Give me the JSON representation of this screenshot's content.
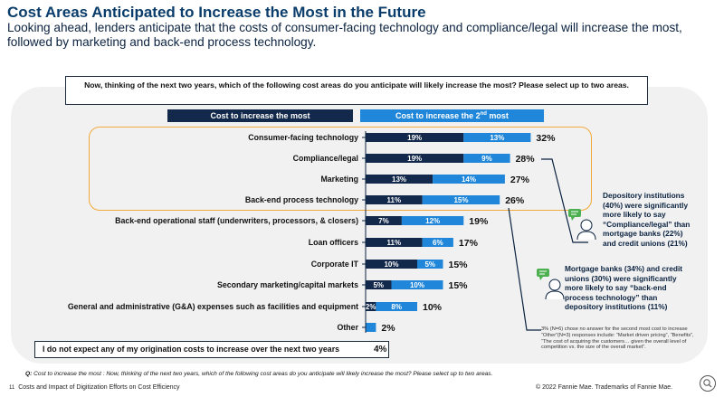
{
  "header": {
    "title": "Cost Areas Anticipated to Increase the Most in the Future",
    "subtitle": "Looking ahead, lenders anticipate that the costs of consumer-facing technology and compliance/legal will increase the most, followed by marketing and back-end process technology."
  },
  "question": "Now, thinking of the next two years, which of the following cost areas do you anticipate will likely increase the most? Please select up to two areas.",
  "legend": {
    "most": "Cost to increase the most",
    "second_prefix": "Cost to increase the 2",
    "second_sup": "nd",
    "second_suffix": " most"
  },
  "colors": {
    "most": "#13294b",
    "second": "#1f86d9",
    "highlight": "#f2a93b",
    "title": "#0a3d6b"
  },
  "chart_data": {
    "type": "bar",
    "stacked": true,
    "orientation": "horizontal",
    "categories": [
      "Consumer-facing technology",
      "Compliance/legal",
      "Marketing",
      "Back-end process technology",
      "Back-end operational staff (underwriters, processors, & closers)",
      "Loan officers",
      "Corporate IT",
      "Secondary marketing/capital markets",
      "General and administrative (G&A) expenses such as facilities and equipment",
      "Other"
    ],
    "series": [
      {
        "name": "Cost to increase the most",
        "values": [
          19,
          19,
          13,
          11,
          7,
          11,
          10,
          5,
          2,
          0
        ],
        "labels": [
          "19%",
          "19%",
          "13%",
          "11%",
          "7%",
          "11%",
          "10%",
          "5%",
          "2%",
          ""
        ]
      },
      {
        "name": "Cost to increase the 2nd most",
        "values": [
          13,
          9,
          14,
          15,
          12,
          6,
          5,
          10,
          8,
          2
        ],
        "labels": [
          "13%",
          "9%",
          "14%",
          "15%",
          "12%",
          "6%",
          "5%",
          "10%",
          "8%",
          ""
        ]
      }
    ],
    "totals": [
      "32%",
      "28%",
      "27%",
      "26%",
      "19%",
      "17%",
      "15%",
      "15%",
      "10%",
      "2%"
    ],
    "highlighted_rows": [
      0,
      1,
      2,
      3
    ],
    "xlim": [
      0,
      32
    ]
  },
  "no_increase": {
    "label": "I do not expect any of my origination costs to increase over the next two years",
    "value": "4%"
  },
  "notes": {
    "depository": "Depository institutions (40%) were significantly more likely to say “Compliance/legal” than mortgage banks (22%) and credit unions (21%)",
    "mortgage": "Mortgage banks (34%) and credit unions (30%) were significantly more likely to say “back-end process technology” than depository institutions (11%)"
  },
  "footnote_1": "3% (N=6) chose no answer for the second most cost to increase",
  "footnote_2": "“Other”(N=3) responses include: “Market driven pricing”, “Benefits”, “The cost of acquiring the customers… given the overall level of competition vs. the size of the overall market”.",
  "question_footer_label": "Q:",
  "question_footer": " Cost to increase the most : Now, thinking of the next two years, which of the following cost areas do you anticipate will likely increase the most? Please select up to two areas.",
  "footer": {
    "page": "11",
    "doc_title": "Costs and Impact of Digitization Efforts on Cost Efficiency",
    "copyright": "© 2022 Fannie Mae.  Trademarks of Fannie Mae."
  },
  "icons": {
    "person": "person-avatar-icon",
    "speech": "speech-bubble-icon",
    "corner": "magnifier-icon"
  }
}
